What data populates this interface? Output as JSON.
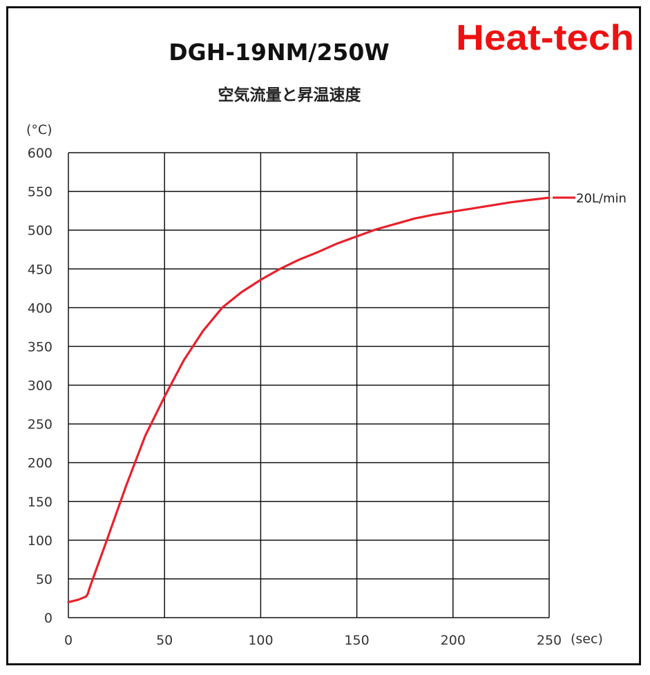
{
  "brand": {
    "text": "Heat-tech",
    "color": "#ee1111"
  },
  "chart_data": {
    "type": "line",
    "title": "DGH-19NM/250W",
    "subtitle": "空気流量と昇温速度",
    "ylabel": "(°C)",
    "xlabel": "(sec)",
    "xlim": [
      0,
      250
    ],
    "ylim": [
      0,
      600
    ],
    "xticks": [
      0,
      50,
      100,
      150,
      200,
      250
    ],
    "yticks": [
      0,
      50,
      100,
      150,
      200,
      250,
      300,
      350,
      400,
      450,
      500,
      550,
      600
    ],
    "grid": true,
    "legend": "right",
    "series": [
      {
        "name": "20L/min",
        "color": "#e8202a",
        "points": [
          [
            0,
            20
          ],
          [
            5,
            23
          ],
          [
            9,
            27
          ],
          [
            10,
            30
          ],
          [
            11,
            38
          ],
          [
            13,
            52
          ],
          [
            20,
            100
          ],
          [
            30,
            170
          ],
          [
            40,
            235
          ],
          [
            50,
            285
          ],
          [
            60,
            332
          ],
          [
            70,
            370
          ],
          [
            80,
            400
          ],
          [
            90,
            420
          ],
          [
            100,
            436
          ],
          [
            110,
            450
          ],
          [
            120,
            462
          ],
          [
            130,
            472
          ],
          [
            140,
            483
          ],
          [
            150,
            492
          ],
          [
            160,
            501
          ],
          [
            170,
            508
          ],
          [
            180,
            515
          ],
          [
            190,
            520
          ],
          [
            200,
            524
          ],
          [
            210,
            528
          ],
          [
            220,
            532
          ],
          [
            230,
            536
          ],
          [
            240,
            539
          ],
          [
            250,
            542
          ]
        ]
      }
    ]
  }
}
